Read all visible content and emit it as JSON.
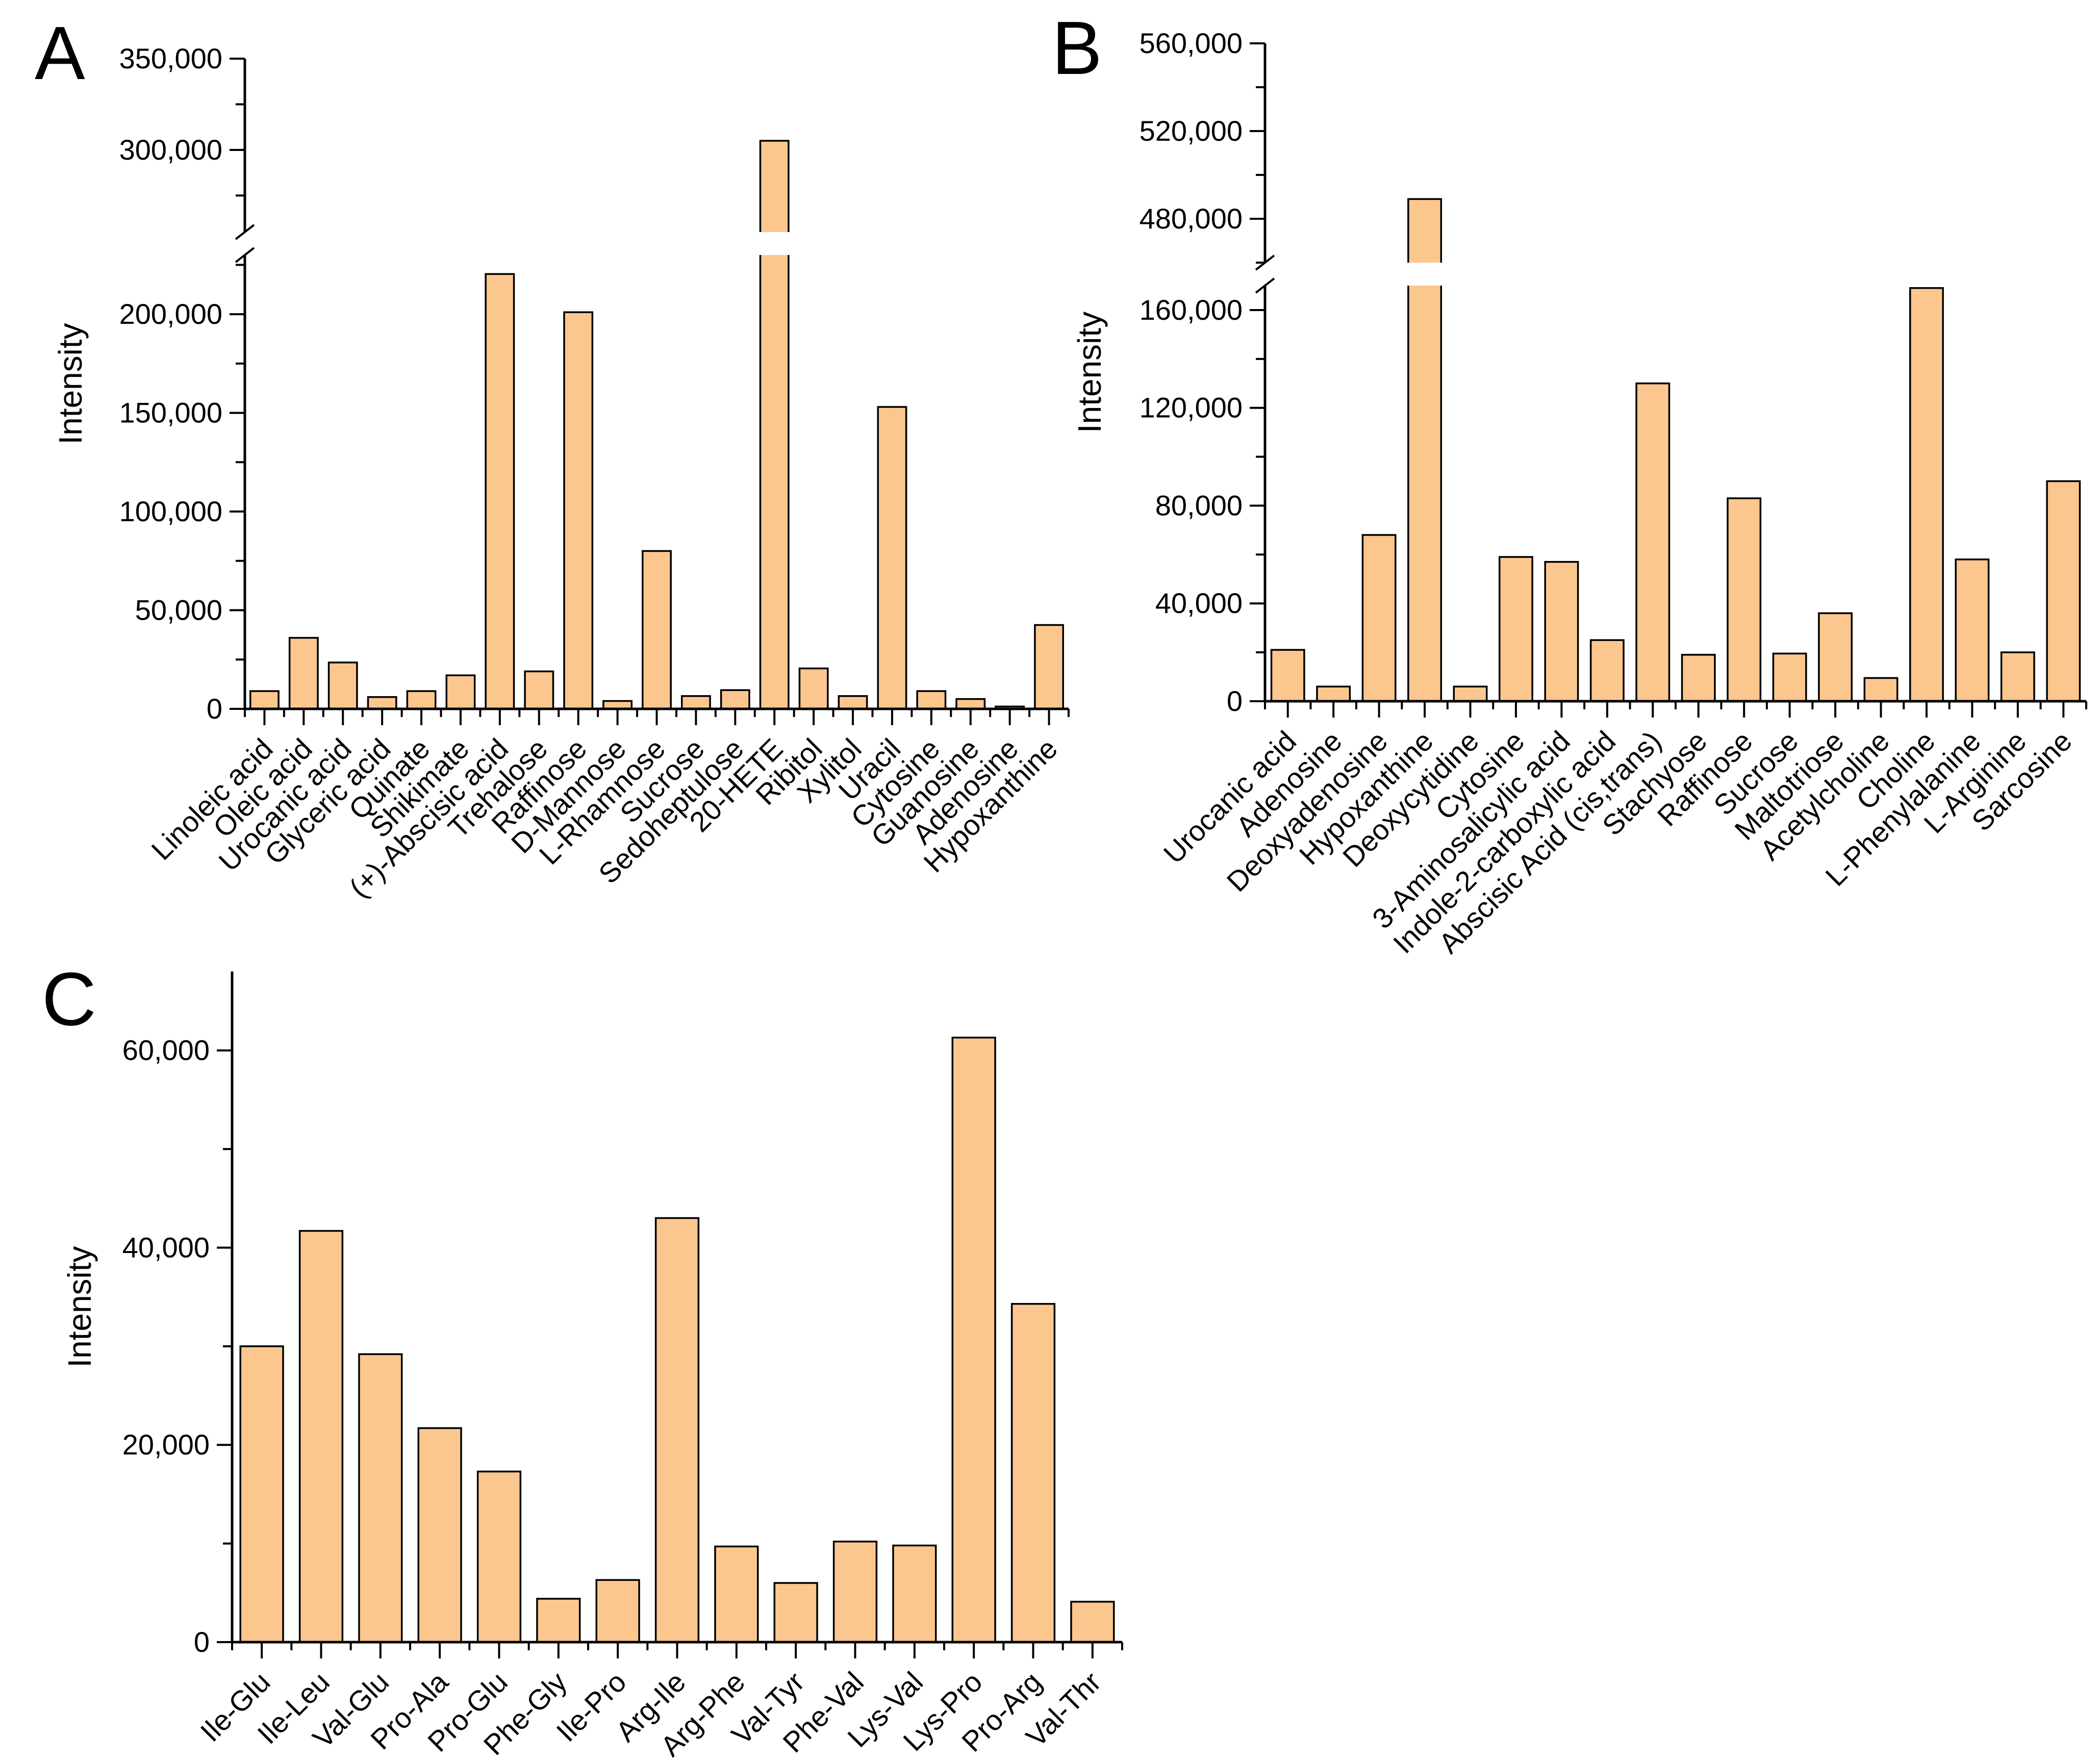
{
  "figure": {
    "background": "#FFFFFF",
    "axis_color": "#000000",
    "bar_fill": "#FCC78F",
    "bar_edge": "#000000"
  },
  "chart_data": [
    {
      "id": "A",
      "type": "bar",
      "panel_label": "A",
      "ylabel": "Intensity",
      "legend": "none",
      "grid": false,
      "categories": [
        "Linoleic acid",
        "Oleic acid",
        "Urocanic acid",
        "Glyceric acid",
        "Quinate",
        "Shikimate",
        "(+)-Abscisic acid",
        "Trehalose",
        "Raffinose",
        "D-Mannose",
        "L-Rhamnose",
        "Sucrose",
        "Sedoheptulose",
        "20-HETE",
        "Ribitol",
        "Xylitol",
        "Uracil",
        "Cytosine",
        "Guanosine",
        "Adenosine",
        "Hypoxanthine"
      ],
      "values": [
        9000,
        36000,
        23500,
        6000,
        9000,
        17000,
        232000,
        19000,
        201000,
        4000,
        80000,
        6500,
        9500,
        305000,
        20500,
        6500,
        153000,
        9000,
        5000,
        1200,
        42500
      ],
      "axis_break": {
        "lower_max": 230000,
        "upper_min": 255000,
        "upper_max": 350000
      },
      "yticks_lower": {
        "major": [
          0,
          50000,
          100000,
          150000,
          200000
        ],
        "labels": [
          "0",
          "50,000",
          "100,000",
          "150,000",
          "200,000"
        ],
        "minor": [
          25000,
          75000,
          125000,
          175000,
          225000
        ]
      },
      "yticks_upper": {
        "major": [
          300000,
          350000
        ],
        "labels": [
          "300,000",
          "350,000"
        ],
        "minor": [
          275000,
          325000
        ]
      }
    },
    {
      "id": "B",
      "type": "bar",
      "panel_label": "B",
      "ylabel": "Intensity",
      "legend": "none",
      "grid": false,
      "categories": [
        "Urocanic acid",
        "Adenosine",
        "Deoxyadenosine",
        "Hypoxanthine",
        "Deoxycytidine",
        "Cytosine",
        "3-Aminosalicylic acid",
        "Indole-2-carboxylic acid",
        "Abscisic Acid (cis,trans)",
        "Stachyose",
        "Raffinose",
        "Sucrose",
        "Maltotriose",
        "Acetylcholine",
        "Choline",
        "L-Phenylalanine",
        "L-Arginine",
        "Sarcosine"
      ],
      "values": [
        21000,
        6000,
        68000,
        489000,
        6000,
        59000,
        57000,
        25000,
        130000,
        19000,
        83000,
        19500,
        36000,
        9500,
        169000,
        58000,
        20000,
        90000
      ],
      "axis_break": {
        "lower_max": 170000,
        "upper_min": 460000,
        "upper_max": 560000
      },
      "yticks_lower": {
        "major": [
          0,
          40000,
          80000,
          120000,
          160000
        ],
        "labels": [
          "0",
          "40,000",
          "80,000",
          "120,000",
          "160,000"
        ],
        "minor": [
          20000,
          60000,
          100000,
          140000
        ]
      },
      "yticks_upper": {
        "major": [
          480000,
          520000,
          560000
        ],
        "labels": [
          "480,000",
          "520,000",
          "560,000"
        ],
        "minor": [
          460000,
          500000,
          540000
        ]
      }
    },
    {
      "id": "C",
      "type": "bar",
      "panel_label": "C",
      "ylabel": "Intensity",
      "legend": "none",
      "grid": false,
      "categories": [
        "Ile-Glu",
        "Ile-Leu",
        "Val-Glu",
        "Pro-Ala",
        "Pro-Glu",
        "Phe-Gly",
        "Ile-Pro",
        "Arg-Ile",
        "Arg-Phe",
        "Val-Tyr",
        "Phe-Val",
        "Lys-Val",
        "Lys-Pro",
        "Pro-Arg",
        "Val-Thr"
      ],
      "values": [
        30000,
        41700,
        29200,
        21700,
        17300,
        4400,
        6300,
        43000,
        9700,
        6000,
        10200,
        9800,
        61300,
        34300,
        4100
      ],
      "axis_break": null,
      "ylim": [
        0,
        68000
      ],
      "yticks": {
        "major": [
          0,
          20000,
          40000,
          60000
        ],
        "labels": [
          "0",
          "20,000",
          "40,000",
          "60,000"
        ],
        "minor": [
          10000,
          30000,
          50000
        ]
      }
    }
  ]
}
